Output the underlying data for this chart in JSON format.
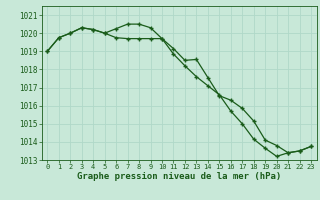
{
  "title": "Graphe pression niveau de la mer (hPa)",
  "bg_color": "#c8e8d8",
  "grid_color": "#b0d8c8",
  "line_color": "#1a5c1a",
  "marker_color": "#1a5c1a",
  "xlim": [
    -0.5,
    23.5
  ],
  "ylim": [
    1013,
    1021.5
  ],
  "yticks": [
    1013,
    1014,
    1015,
    1016,
    1017,
    1018,
    1019,
    1020,
    1021
  ],
  "xticks": [
    0,
    1,
    2,
    3,
    4,
    5,
    6,
    7,
    8,
    9,
    10,
    11,
    12,
    13,
    14,
    15,
    16,
    17,
    18,
    19,
    20,
    21,
    22,
    23
  ],
  "series1": [
    1019.0,
    1019.75,
    1020.0,
    1020.3,
    1020.2,
    1020.0,
    1020.25,
    1020.5,
    1020.5,
    1020.3,
    1019.7,
    1019.15,
    1018.5,
    1018.55,
    1017.55,
    1016.55,
    1016.3,
    1015.85,
    1015.15,
    1014.1,
    1013.8,
    1013.4,
    1013.5,
    1013.75
  ],
  "series2": [
    1019.0,
    1019.75,
    1020.0,
    1020.3,
    1020.2,
    1020.0,
    1019.75,
    1019.7,
    1019.7,
    1019.7,
    1019.7,
    1018.85,
    1018.2,
    1017.6,
    1017.1,
    1016.6,
    1015.7,
    1015.0,
    1014.15,
    1013.65,
    1013.2,
    1013.4,
    1013.5,
    1013.75
  ],
  "xlabel_fontsize": 6.5,
  "ytick_fontsize": 5.5,
  "xtick_fontsize": 5.0
}
